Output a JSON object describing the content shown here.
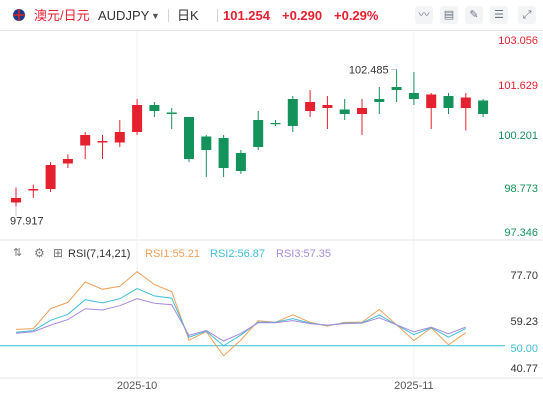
{
  "header": {
    "pair_name": "澳元/日元",
    "symbol": "AUDJPY",
    "interval": "日K",
    "price": "101.254",
    "change": "+0.290",
    "change_pct": "+0.29%",
    "icons": [
      "flag-icon",
      "chevron-down-icon",
      "line-icon",
      "area-icon",
      "pen-icon",
      "settings-icon",
      "fullscreen-icon",
      "close-icon"
    ]
  },
  "colors": {
    "up": "#e5212f",
    "down": "#14925c",
    "rsi1": "#f0a05a",
    "rsi2": "#3fbfd7",
    "rsi3": "#a78bdb",
    "ref_line": "#3fbfd7"
  },
  "chart_data": [
    {
      "type": "candlestick",
      "y_axis_ticks": [
        "103.056",
        "101.629",
        "100.201",
        "98.773",
        "97.346"
      ],
      "ylim": [
        96.9,
        103.6
      ],
      "annotations": {
        "high": "102.485",
        "low": "97.917"
      },
      "candles": [
        {
          "o": 98.2,
          "h": 98.55,
          "l": 97.92,
          "c": 98.05
        },
        {
          "o": 98.5,
          "h": 98.65,
          "l": 98.2,
          "c": 98.45
        },
        {
          "o": 99.3,
          "h": 99.4,
          "l": 98.4,
          "c": 98.5
        },
        {
          "o": 99.5,
          "h": 99.65,
          "l": 99.2,
          "c": 99.35
        },
        {
          "o": 100.3,
          "h": 100.4,
          "l": 99.5,
          "c": 99.95
        },
        {
          "o": 100.1,
          "h": 100.3,
          "l": 99.5,
          "c": 100.05
        },
        {
          "o": 100.4,
          "h": 100.8,
          "l": 99.9,
          "c": 100.05
        },
        {
          "o": 101.3,
          "h": 101.5,
          "l": 100.3,
          "c": 100.4
        },
        {
          "o": 101.1,
          "h": 101.4,
          "l": 100.9,
          "c": 101.3
        },
        {
          "o": 101.0,
          "h": 101.2,
          "l": 100.5,
          "c": 101.05
        },
        {
          "o": 99.5,
          "h": 100.9,
          "l": 99.4,
          "c": 100.9
        },
        {
          "o": 99.8,
          "h": 100.3,
          "l": 98.9,
          "c": 100.25
        },
        {
          "o": 99.2,
          "h": 100.3,
          "l": 98.9,
          "c": 100.2
        },
        {
          "o": 99.1,
          "h": 99.8,
          "l": 99.0,
          "c": 99.7
        },
        {
          "o": 99.9,
          "h": 101.1,
          "l": 99.8,
          "c": 100.8
        },
        {
          "o": 100.7,
          "h": 100.8,
          "l": 100.6,
          "c": 100.7
        },
        {
          "o": 100.6,
          "h": 101.6,
          "l": 100.4,
          "c": 101.5
        },
        {
          "o": 101.4,
          "h": 101.8,
          "l": 100.9,
          "c": 101.1
        },
        {
          "o": 101.3,
          "h": 101.6,
          "l": 100.5,
          "c": 101.2
        },
        {
          "o": 101.0,
          "h": 101.5,
          "l": 100.8,
          "c": 101.15
        },
        {
          "o": 101.2,
          "h": 101.5,
          "l": 100.3,
          "c": 101.0
        },
        {
          "o": 101.4,
          "h": 101.9,
          "l": 101.0,
          "c": 101.5
        },
        {
          "o": 101.8,
          "h": 102.485,
          "l": 101.4,
          "c": 101.9
        },
        {
          "o": 101.5,
          "h": 102.4,
          "l": 101.3,
          "c": 101.7
        },
        {
          "o": 101.65,
          "h": 101.7,
          "l": 100.5,
          "c": 101.2
        },
        {
          "o": 101.2,
          "h": 101.7,
          "l": 101.0,
          "c": 101.6
        },
        {
          "o": 101.55,
          "h": 101.7,
          "l": 100.45,
          "c": 101.2
        },
        {
          "o": 101.0,
          "h": 101.5,
          "l": 100.9,
          "c": 101.45
        }
      ]
    },
    {
      "type": "line",
      "indicator": "RSI(7,14,21)",
      "series_labels": [
        "RSI1:55.21",
        "RSI2:56.87",
        "RSI3:57.35"
      ],
      "y_axis_ticks": [
        "77.70",
        "59.23",
        "50.00",
        "40.77"
      ],
      "reference_line": 50,
      "ylim": [
        40.77,
        77.7
      ],
      "series": [
        {
          "name": "RSI1",
          "values": [
            56.5,
            56.8,
            64.7,
            67.2,
            75.3,
            72.4,
            73.6,
            79.4,
            74.3,
            71.5,
            52.2,
            55.6,
            46.0,
            52.3,
            59.9,
            59.3,
            62.3,
            59.3,
            57.8,
            59.3,
            59.3,
            64.4,
            58.3,
            52.1,
            57.1,
            50.4,
            55.2
          ]
        },
        {
          "name": "RSI2",
          "values": [
            55.4,
            56.0,
            60.1,
            62.5,
            68.3,
            67.0,
            68.7,
            72.7,
            69.8,
            68.9,
            53.4,
            55.8,
            50.0,
            54.3,
            59.4,
            59.3,
            60.8,
            59.0,
            58.1,
            59.0,
            59.1,
            62.2,
            58.3,
            54.4,
            57.2,
            53.4,
            56.9
          ]
        },
        {
          "name": "RSI3",
          "values": [
            55.0,
            55.6,
            58.2,
            60.4,
            64.7,
            64.2,
            65.9,
            68.7,
            66.9,
            66.3,
            54.1,
            56.1,
            51.9,
            54.9,
            59.1,
            59.1,
            60.0,
            58.8,
            58.2,
            58.8,
            59.0,
            61.1,
            58.3,
            55.5,
            57.4,
            54.8,
            57.4
          ]
        }
      ]
    }
  ],
  "x_axis": {
    "ticks": [
      {
        "label": "2025-10",
        "index": 7
      },
      {
        "label": "2025-11",
        "index": 23
      }
    ]
  }
}
